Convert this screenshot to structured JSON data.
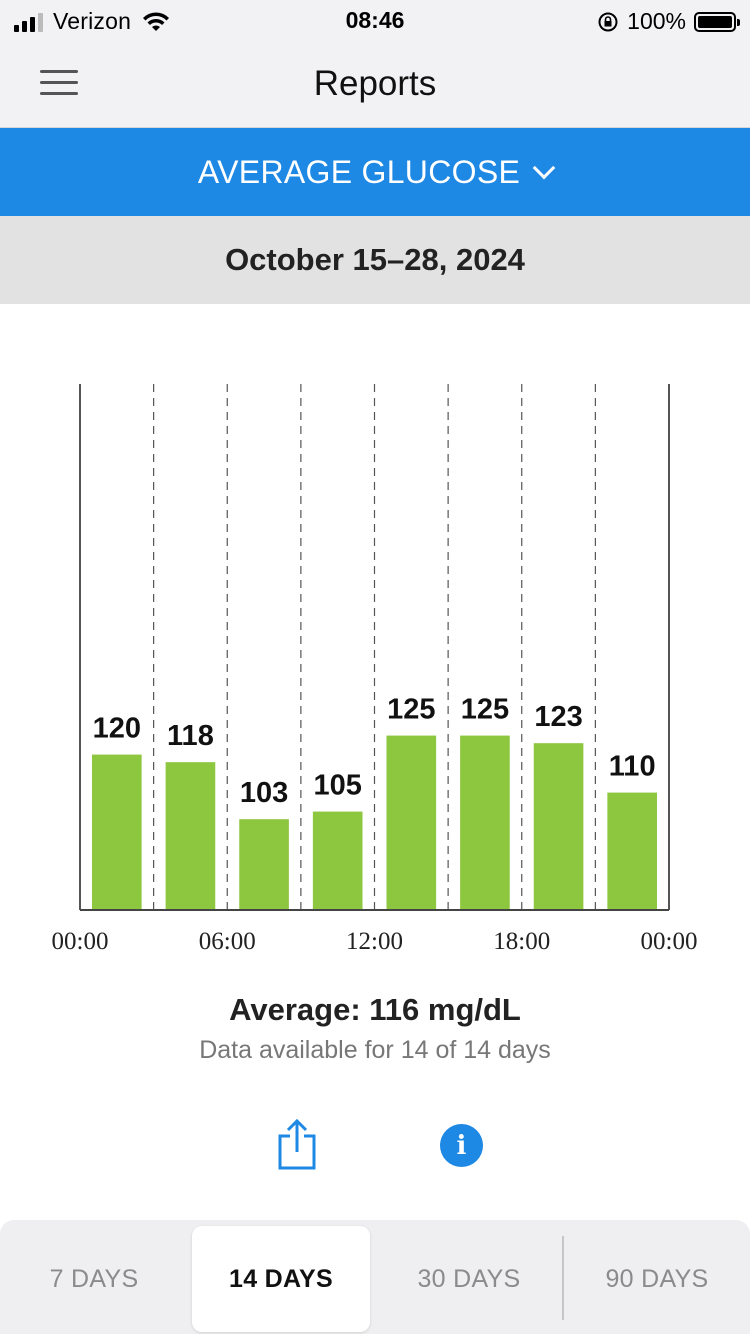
{
  "status_bar": {
    "carrier": "Verizon",
    "time": "08:46",
    "battery": "100%",
    "icons": [
      "signal-icon",
      "wifi-icon",
      "orientation-lock-icon",
      "battery-icon"
    ]
  },
  "nav": {
    "title": "Reports",
    "menu_icon": "hamburger-menu-icon"
  },
  "report_selector": {
    "label": "AVERAGE GLUCOSE",
    "icon": "chevron-down-icon"
  },
  "date_range": "October 15–28, 2024",
  "chart_data": {
    "type": "bar",
    "values": [
      120,
      118,
      103,
      105,
      125,
      125,
      123,
      110
    ],
    "value_labels": [
      "120",
      "118",
      "103",
      "105",
      "125",
      "125",
      "123",
      "110"
    ],
    "x_ticks": [
      "00:00",
      "06:00",
      "12:00",
      "18:00",
      "00:00"
    ],
    "bins_hours": 3,
    "x_range_hours": [
      0,
      24
    ],
    "color": "#8dc63f",
    "grid": "dashed vertical"
  },
  "summary": {
    "average": "Average: 116 mg/dL",
    "availability": "Data available for 14 of 14 days"
  },
  "actions": {
    "share_icon": "share-icon",
    "info_icon": "info-icon",
    "info_glyph": "i"
  },
  "range_tabs": [
    {
      "label": "7 DAYS",
      "active": false
    },
    {
      "label": "14 DAYS",
      "active": true
    },
    {
      "label": "30 DAYS",
      "active": false
    },
    {
      "label": "90 DAYS",
      "active": false
    }
  ],
  "colors": {
    "accent": "#1e88e5",
    "bar": "#8dc63f"
  }
}
